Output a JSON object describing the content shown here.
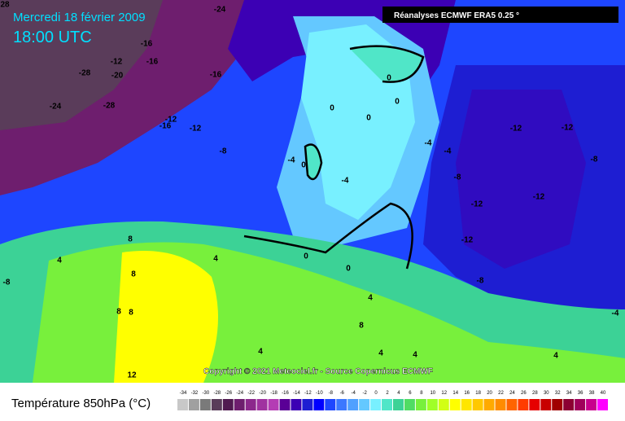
{
  "header": {
    "date": "Mercredi 18 février 2009",
    "time": "18:00 UTC",
    "source": "Réanalyses ECMWF ERA5 0.25 °"
  },
  "copyright": "Copyright © 2021 Meteociel.fr - Source Copernicus ECMWF",
  "legend": {
    "title": "Température 850hPa (°C)",
    "ticks": [
      -34,
      -32,
      -30,
      -28,
      -26,
      -24,
      -22,
      -20,
      -18,
      -16,
      -14,
      -12,
      -10,
      -8,
      -6,
      -4,
      -2,
      0,
      2,
      4,
      6,
      8,
      10,
      12,
      14,
      16,
      18,
      20,
      22,
      24,
      26,
      28,
      30,
      32,
      34,
      36,
      38,
      40
    ],
    "colors": [
      "#c8c8c8",
      "#a0a0a0",
      "#7a7a7a",
      "#5a3c5a",
      "#501a50",
      "#6e1e6e",
      "#8c288c",
      "#a032a0",
      "#b43cb4",
      "#5a0096",
      "#3c00b4",
      "#1e1ed2",
      "#0000ff",
      "#1e46ff",
      "#3c78ff",
      "#50a0ff",
      "#64c8ff",
      "#78f0ff",
      "#50e6c8",
      "#3cd296",
      "#50dc64",
      "#78f03c",
      "#a0ff28",
      "#d2ff14",
      "#ffff00",
      "#ffe600",
      "#ffc800",
      "#ffaa00",
      "#ff8c00",
      "#ff6400",
      "#ff3c00",
      "#e60000",
      "#c80000",
      "#a00000",
      "#8c0032",
      "#a0005a",
      "#c8008c",
      "#ff00ff"
    ]
  },
  "contour_labels": [
    "28",
    "-24",
    "-16",
    "-12",
    "-16",
    "-28",
    "-20",
    "-24",
    "-28",
    "-12",
    "-16",
    "-12",
    "-16",
    "-8",
    "-4",
    "0",
    "0",
    "0",
    "0",
    "0",
    "-4",
    "-4",
    "-8",
    "-12",
    "-12",
    "-12",
    "-12",
    "-8",
    "-12",
    "-4",
    "-8",
    "4",
    "8",
    "8",
    "8",
    "8",
    "4",
    "0",
    "0",
    "4",
    "8",
    "4",
    "4",
    "4",
    "12",
    "-8",
    "-4",
    "4"
  ]
}
